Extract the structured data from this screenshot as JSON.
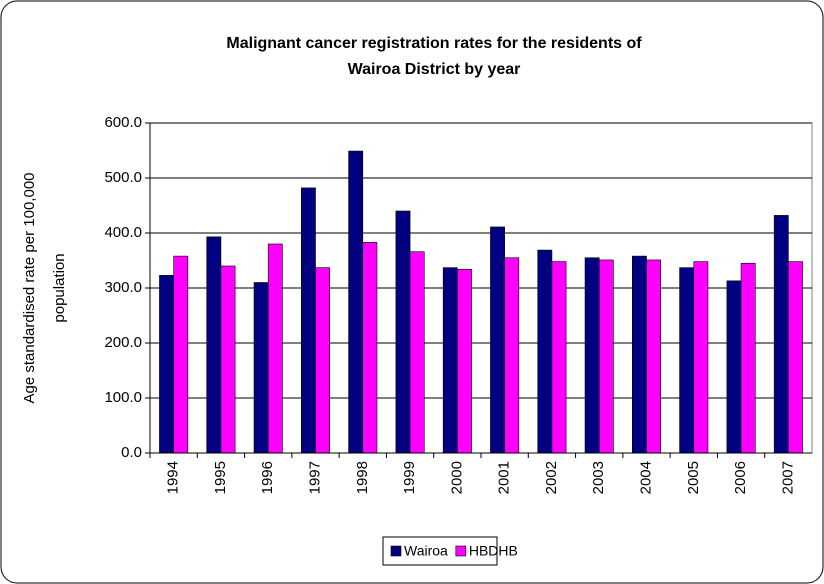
{
  "chart_data": {
    "type": "bar",
    "title": [
      "Malignant cancer registration rates for the residents of",
      "Wairoa District by year"
    ],
    "y_label": [
      "Age standardised rate per 100,000",
      "population"
    ],
    "categories": [
      "1994",
      "1995",
      "1996",
      "1997",
      "1998",
      "1999",
      "2000",
      "2001",
      "2002",
      "2003",
      "2004",
      "2005",
      "2006",
      "2007"
    ],
    "series": [
      {
        "name": "Wairoa",
        "color": "#000080",
        "values": [
          323,
          393,
          310,
          482,
          549,
          440,
          337,
          411,
          369,
          355,
          358,
          337,
          313,
          432
        ]
      },
      {
        "name": "HBDHB",
        "color": "#ff00ff",
        "values": [
          358,
          340,
          380,
          337,
          383,
          366,
          334,
          355,
          348,
          351,
          351,
          348,
          345,
          348
        ]
      }
    ],
    "ylim": [
      0,
      600
    ],
    "yticks": [
      {
        "value": 0,
        "label": "0.0"
      },
      {
        "value": 100,
        "label": "100.0"
      },
      {
        "value": 200,
        "label": "200.0"
      },
      {
        "value": 300,
        "label": "300.0"
      },
      {
        "value": 400,
        "label": "400.0"
      },
      {
        "value": 500,
        "label": "500.0"
      },
      {
        "value": 600,
        "label": "600.0"
      }
    ],
    "grid": true,
    "legend": "bottom"
  }
}
